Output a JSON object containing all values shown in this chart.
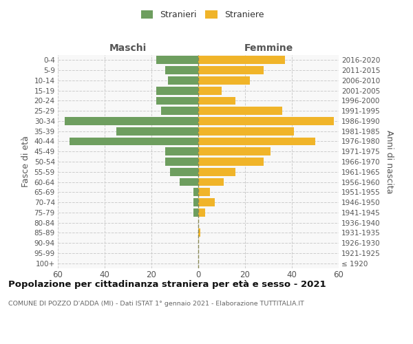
{
  "age_groups": [
    "100+",
    "95-99",
    "90-94",
    "85-89",
    "80-84",
    "75-79",
    "70-74",
    "65-69",
    "60-64",
    "55-59",
    "50-54",
    "45-49",
    "40-44",
    "35-39",
    "30-34",
    "25-29",
    "20-24",
    "15-19",
    "10-14",
    "5-9",
    "0-4"
  ],
  "birth_years": [
    "≤ 1920",
    "1921-1925",
    "1926-1930",
    "1931-1935",
    "1936-1940",
    "1941-1945",
    "1946-1950",
    "1951-1955",
    "1956-1960",
    "1961-1965",
    "1966-1970",
    "1971-1975",
    "1976-1980",
    "1981-1985",
    "1986-1990",
    "1991-1995",
    "1996-2000",
    "2001-2005",
    "2006-2010",
    "2011-2015",
    "2016-2020"
  ],
  "maschi": [
    0,
    0,
    0,
    0,
    0,
    2,
    2,
    2,
    8,
    12,
    14,
    14,
    55,
    35,
    57,
    16,
    18,
    18,
    13,
    14,
    18
  ],
  "femmine": [
    0,
    0,
    0,
    1,
    0,
    3,
    7,
    5,
    11,
    16,
    28,
    31,
    50,
    41,
    58,
    36,
    16,
    10,
    22,
    28,
    37
  ],
  "male_color": "#6e9e5f",
  "female_color": "#f0b429",
  "center_line_color": "#888855",
  "grid_color": "#cccccc",
  "bg_color": "#f8f8f8",
  "xlim": 60,
  "title": "Popolazione per cittadinanza straniera per età e sesso - 2021",
  "subtitle": "COMUNE DI POZZO D'ADDA (MI) - Dati ISTAT 1° gennaio 2021 - Elaborazione TUTTITALIA.IT",
  "legend_male": "Stranieri",
  "legend_female": "Straniere",
  "label_maschi": "Maschi",
  "label_femmine": "Femmine",
  "ylabel_left": "Fasce di età",
  "ylabel_right": "Anni di nascita"
}
